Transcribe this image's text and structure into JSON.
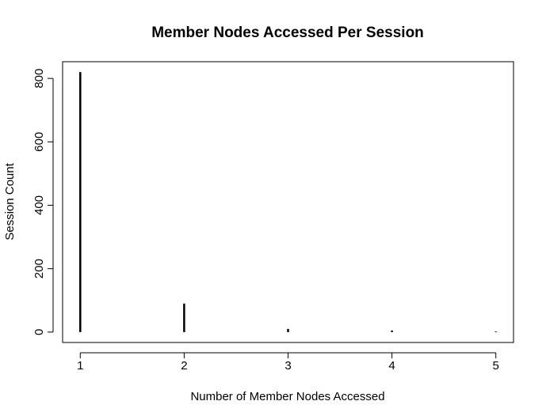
{
  "chart_data": {
    "type": "bar",
    "title": "Member Nodes Accessed Per Session",
    "xlabel": "Number of Member Nodes Accessed",
    "ylabel": "Session Count",
    "x": [
      1,
      2,
      3,
      4,
      5
    ],
    "values": [
      820,
      90,
      10,
      5,
      2
    ],
    "x_ticks": [
      "1",
      "2",
      "3",
      "4",
      "5"
    ],
    "y_ticks": [
      "0",
      "200",
      "400",
      "600",
      "800"
    ],
    "xlim": [
      0.83,
      5.17
    ],
    "ylim": [
      -32.8,
      852.8
    ],
    "grid": false,
    "legend": "none",
    "colors": {
      "bars": "#000000",
      "frame": "#000000",
      "background": "#ffffff"
    }
  }
}
